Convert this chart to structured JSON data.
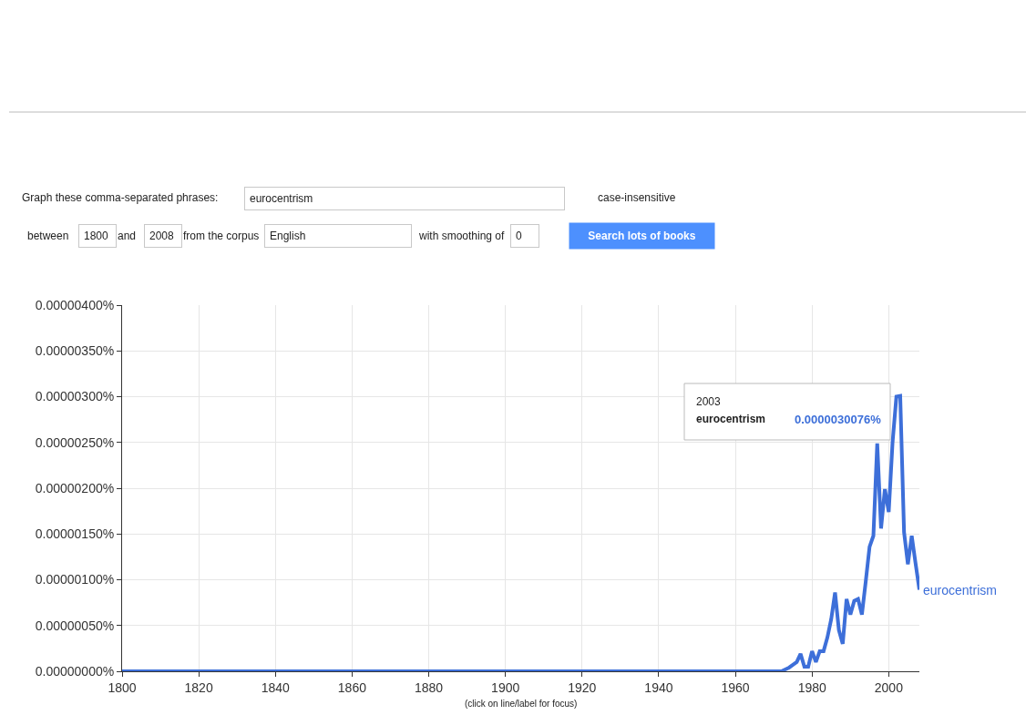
{
  "chart_data": {
    "type": "line",
    "x": [
      1800,
      1972,
      1973,
      1974,
      1975,
      1976,
      1977,
      1978,
      1979,
      1980,
      1981,
      1982,
      1983,
      1984,
      1985,
      1986,
      1987,
      1988,
      1989,
      1990,
      1991,
      1992,
      1993,
      1994,
      1995,
      1996,
      1997,
      1998,
      1999,
      2000,
      2001,
      2002,
      2003,
      2004,
      2005,
      2006,
      2007,
      2008
    ],
    "series": [
      {
        "name": "eurocentrism",
        "color": "#3d6fd9",
        "values": [
          0,
          0,
          2e-08,
          4e-08,
          7e-08,
          1e-07,
          1.9e-07,
          5e-08,
          5e-08,
          2.2e-07,
          1e-07,
          2.2e-07,
          2.2e-07,
          3.7e-07,
          5.7e-07,
          8.6e-07,
          4.5e-07,
          3e-07,
          7.9e-07,
          6.2e-07,
          7.7e-07,
          7.9e-07,
          6.2e-07,
          9.8e-07,
          1.36e-06,
          1.48e-06,
          2.49e-06,
          1.56e-06,
          1.99e-06,
          1.74e-06,
          2.5e-06,
          3e-06,
          3.0076e-06,
          1.52e-06,
          1.17e-06,
          1.48e-06,
          1.18e-06,
          8.9e-07
        ]
      }
    ],
    "xlim": [
      1800,
      2008
    ],
    "xticks": [
      1800,
      1820,
      1840,
      1860,
      1880,
      1900,
      1920,
      1940,
      1960,
      1980,
      2000
    ],
    "ylim": [
      0,
      4e-06
    ],
    "yticks": [
      {
        "value": 0,
        "label": "0.00000000%"
      },
      {
        "value": 5e-07,
        "label": "0.00000050%"
      },
      {
        "value": 1e-06,
        "label": "0.00000100%"
      },
      {
        "value": 1.5e-06,
        "label": "0.00000150%"
      },
      {
        "value": 2e-06,
        "label": "0.00000200%"
      },
      {
        "value": 2.5e-06,
        "label": "0.00000250%"
      },
      {
        "value": 3e-06,
        "label": "0.00000300%"
      },
      {
        "value": 3.5e-06,
        "label": "0.00000350%"
      },
      {
        "value": 4e-06,
        "label": "0.00000400%"
      }
    ],
    "grid": true,
    "legend": false,
    "marker": "none",
    "line_style": "solid",
    "annotations": [
      "Graph these comma-separated phrases:",
      "eurocentrism",
      "case-insensitive",
      "between",
      "1800",
      "and",
      "2008",
      "from the corpus",
      "English",
      "with smoothing of",
      "0",
      "Search lots of books",
      "2003",
      "eurocentrism",
      "0.0000030076%",
      "(click on line/label for focus)"
    ]
  }
}
